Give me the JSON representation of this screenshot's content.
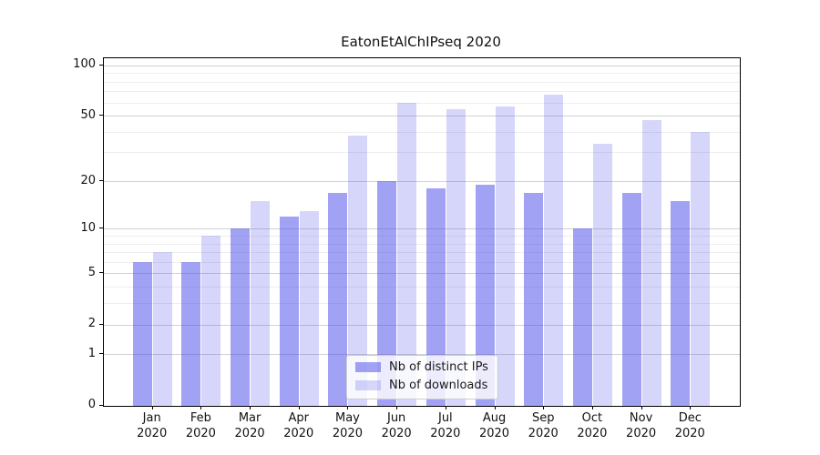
{
  "figure": {
    "title": "EatonEtAlChIPseq 2020"
  },
  "chart_data": {
    "type": "bar",
    "title": "EatonEtAlChIPseq 2020",
    "categories": [
      "Jan",
      "Feb",
      "Mar",
      "Apr",
      "May",
      "Jun",
      "Jul",
      "Aug",
      "Sep",
      "Oct",
      "Nov",
      "Dec"
    ],
    "category_year": "2020",
    "series": [
      {
        "name": "Nb of distinct IPs",
        "color": "#4646eb",
        "opacity": 0.5,
        "values": [
          6,
          6,
          10,
          12,
          17,
          20,
          18,
          19,
          17,
          10,
          17,
          15
        ]
      },
      {
        "name": "Nb of downloads",
        "color": "#4646eb",
        "opacity": 0.22,
        "values": [
          7,
          9,
          15,
          13,
          38,
          60,
          55,
          57,
          67,
          34,
          47,
          40
        ]
      }
    ],
    "xlabel": "",
    "ylabel": "",
    "y_scale": "log1p",
    "ylim": [
      0,
      111
    ],
    "y_tick_values": [
      0,
      1,
      2,
      5,
      10,
      20,
      50,
      100
    ],
    "y_minor_gridline_values": [
      3,
      4,
      6,
      7,
      8,
      9,
      30,
      40,
      60,
      70,
      80,
      90
    ],
    "grid": true,
    "legend_position": "lower center"
  },
  "colors": {
    "axis": "#000000",
    "grid_major": "#d2d2d2",
    "grid_minor": "#eeeeee",
    "text": "#111111",
    "legend_border": "#cccccc",
    "background": "#ffffff"
  }
}
